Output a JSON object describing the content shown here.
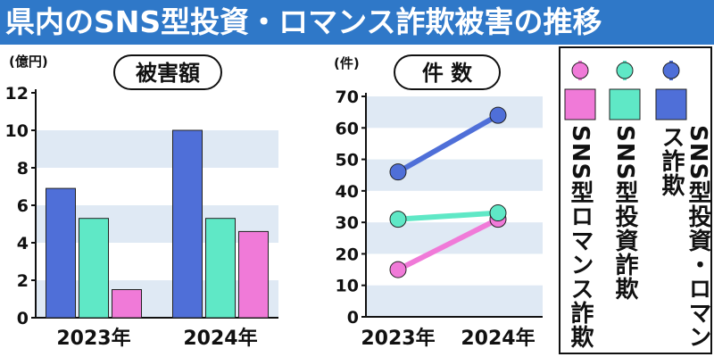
{
  "title": "県内のSNS型投資・ロマンス詐欺被害の推移",
  "legend": [
    {
      "label": "SNS型投資・ロマンス詐欺",
      "color": "#4f6fd8"
    },
    {
      "label": "SNS型投資詐欺",
      "color": "#5fe8c6"
    },
    {
      "label": "SNS型ロマンス詐欺",
      "color": "#f07ad8"
    }
  ],
  "chart_data": [
    {
      "type": "bar",
      "title": "被害額",
      "yunit": "(億円)",
      "categories": [
        "2023年",
        "2024年"
      ],
      "ylim": [
        0,
        12
      ],
      "yticks": [
        0,
        2,
        4,
        6,
        8,
        10,
        12
      ],
      "series": [
        {
          "name": "SNS型投資・ロマンス詐欺",
          "color": "#4f6fd8",
          "values": [
            6.9,
            10.0
          ]
        },
        {
          "name": "SNS型投資詐欺",
          "color": "#5fe8c6",
          "values": [
            5.3,
            5.3
          ]
        },
        {
          "name": "SNS型ロマンス詐欺",
          "color": "#f07ad8",
          "values": [
            1.5,
            4.6
          ]
        }
      ]
    },
    {
      "type": "line",
      "title": "件 数",
      "yunit": "(件)",
      "categories": [
        "2023年",
        "2024年"
      ],
      "ylim": [
        0,
        70
      ],
      "yticks": [
        0,
        10,
        20,
        30,
        40,
        50,
        60,
        70
      ],
      "series": [
        {
          "name": "SNS型投資・ロマンス詐欺",
          "color": "#4f6fd8",
          "values": [
            46,
            64
          ]
        },
        {
          "name": "SNS型投資詐欺",
          "color": "#5fe8c6",
          "values": [
            31,
            33
          ]
        },
        {
          "name": "SNS型ロマンス詐欺",
          "color": "#f07ad8",
          "values": [
            15,
            31
          ]
        }
      ]
    }
  ]
}
